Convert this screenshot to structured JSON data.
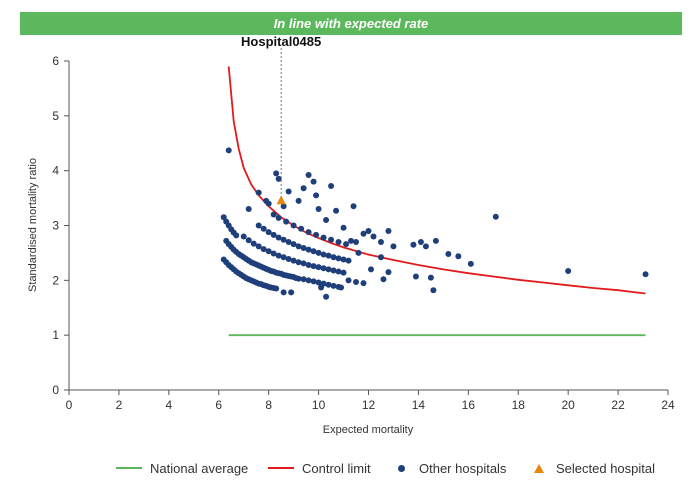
{
  "banner": {
    "text": "In line with expected rate",
    "color": "#5cb85c"
  },
  "colors": {
    "national": "#5cb85c",
    "control": "#e31a1c",
    "others": "#1f3f7a",
    "selected": "#e8850c"
  },
  "chart_data": {
    "type": "scatter",
    "title": "",
    "xlabel": "Expected mortality",
    "ylabel": "Standardised mortality ratio",
    "xlim": [
      0,
      24
    ],
    "ylim": [
      0,
      6
    ],
    "xticks": [
      0,
      2,
      4,
      6,
      8,
      10,
      12,
      14,
      16,
      18,
      20,
      22,
      24
    ],
    "yticks": [
      0,
      1,
      2,
      3,
      4,
      5,
      6
    ],
    "grid": false,
    "legend_position": "bottom",
    "selected_label": "Hospital0485",
    "national_average": {
      "name": "National average",
      "y": 1,
      "x_range": [
        6.4,
        23.1
      ]
    },
    "control_limit": {
      "name": "Control limit",
      "points": [
        [
          6.4,
          5.9
        ],
        [
          6.6,
          4.9
        ],
        [
          6.8,
          4.4
        ],
        [
          7.0,
          4.05
        ],
        [
          7.3,
          3.75
        ],
        [
          7.6,
          3.55
        ],
        [
          8.0,
          3.35
        ],
        [
          8.5,
          3.15
        ],
        [
          9.0,
          3.0
        ],
        [
          9.5,
          2.87
        ],
        [
          10.0,
          2.77
        ],
        [
          10.5,
          2.68
        ],
        [
          11.0,
          2.6
        ],
        [
          12.0,
          2.47
        ],
        [
          13.0,
          2.37
        ],
        [
          14.0,
          2.28
        ],
        [
          15.0,
          2.2
        ],
        [
          16.0,
          2.13
        ],
        [
          17.0,
          2.07
        ],
        [
          18.0,
          2.01
        ],
        [
          19.0,
          1.96
        ],
        [
          20.0,
          1.91
        ],
        [
          21.0,
          1.86
        ],
        [
          22.0,
          1.82
        ],
        [
          23.1,
          1.76
        ]
      ]
    },
    "other_hospitals": {
      "name": "Other hospitals",
      "points": [
        [
          6.2,
          2.38
        ],
        [
          6.3,
          2.33
        ],
        [
          6.4,
          2.28
        ],
        [
          6.5,
          2.24
        ],
        [
          6.6,
          2.2
        ],
        [
          6.7,
          2.16
        ],
        [
          6.8,
          2.13
        ],
        [
          6.9,
          2.1
        ],
        [
          7.0,
          2.07
        ],
        [
          7.1,
          2.04
        ],
        [
          7.2,
          2.02
        ],
        [
          7.3,
          2.0
        ],
        [
          7.4,
          1.98
        ],
        [
          7.5,
          1.96
        ],
        [
          7.6,
          1.94
        ],
        [
          7.7,
          1.93
        ],
        [
          7.8,
          1.91
        ],
        [
          7.9,
          1.9
        ],
        [
          8.0,
          1.88
        ],
        [
          8.1,
          1.87
        ],
        [
          8.2,
          1.86
        ],
        [
          8.3,
          1.85
        ],
        [
          6.3,
          2.72
        ],
        [
          6.4,
          2.66
        ],
        [
          6.5,
          2.61
        ],
        [
          6.6,
          2.56
        ],
        [
          6.7,
          2.52
        ],
        [
          6.8,
          2.48
        ],
        [
          6.9,
          2.45
        ],
        [
          7.0,
          2.42
        ],
        [
          7.1,
          2.39
        ],
        [
          7.2,
          2.36
        ],
        [
          7.3,
          2.33
        ],
        [
          7.4,
          2.31
        ],
        [
          7.5,
          2.29
        ],
        [
          7.6,
          2.27
        ],
        [
          7.7,
          2.25
        ],
        [
          7.8,
          2.23
        ],
        [
          7.9,
          2.21
        ],
        [
          8.0,
          2.19
        ],
        [
          8.1,
          2.17
        ],
        [
          8.2,
          2.16
        ],
        [
          8.3,
          2.14
        ],
        [
          8.4,
          2.13
        ],
        [
          8.5,
          2.12
        ],
        [
          8.6,
          2.1
        ],
        [
          8.7,
          2.09
        ],
        [
          8.8,
          2.08
        ],
        [
          8.9,
          2.07
        ],
        [
          9.0,
          2.06
        ],
        [
          9.1,
          2.04
        ],
        [
          9.2,
          2.03
        ],
        [
          9.4,
          2.02
        ],
        [
          9.6,
          2.0
        ],
        [
          9.8,
          1.98
        ],
        [
          10.0,
          1.96
        ],
        [
          10.2,
          1.94
        ],
        [
          10.4,
          1.92
        ],
        [
          10.6,
          1.9
        ],
        [
          10.8,
          1.88
        ],
        [
          10.9,
          1.87
        ],
        [
          6.2,
          3.15
        ],
        [
          6.3,
          3.07
        ],
        [
          6.4,
          3.0
        ],
        [
          6.5,
          2.93
        ],
        [
          6.6,
          2.87
        ],
        [
          6.7,
          2.82
        ],
        [
          7.0,
          2.8
        ],
        [
          7.2,
          2.73
        ],
        [
          7.4,
          2.67
        ],
        [
          7.6,
          2.62
        ],
        [
          7.8,
          2.57
        ],
        [
          8.0,
          2.53
        ],
        [
          8.2,
          2.49
        ],
        [
          8.4,
          2.45
        ],
        [
          8.6,
          2.42
        ],
        [
          8.8,
          2.39
        ],
        [
          9.0,
          2.36
        ],
        [
          9.2,
          2.33
        ],
        [
          9.4,
          2.31
        ],
        [
          9.6,
          2.28
        ],
        [
          9.8,
          2.26
        ],
        [
          10.0,
          2.24
        ],
        [
          10.2,
          2.22
        ],
        [
          10.4,
          2.2
        ],
        [
          10.6,
          2.18
        ],
        [
          10.8,
          2.16
        ],
        [
          11.0,
          2.14
        ],
        [
          7.6,
          3.0
        ],
        [
          7.8,
          2.94
        ],
        [
          8.0,
          2.88
        ],
        [
          8.2,
          2.83
        ],
        [
          8.4,
          2.78
        ],
        [
          8.6,
          2.74
        ],
        [
          8.8,
          2.7
        ],
        [
          9.0,
          2.66
        ],
        [
          9.2,
          2.62
        ],
        [
          9.4,
          2.59
        ],
        [
          9.6,
          2.56
        ],
        [
          9.8,
          2.53
        ],
        [
          10.0,
          2.5
        ],
        [
          10.2,
          2.47
        ],
        [
          10.4,
          2.45
        ],
        [
          10.6,
          2.42
        ],
        [
          10.8,
          2.4
        ],
        [
          11.0,
          2.38
        ],
        [
          11.2,
          2.36
        ],
        [
          8.2,
          3.2
        ],
        [
          8.4,
          3.14
        ],
        [
          8.7,
          3.07
        ],
        [
          9.0,
          3.0
        ],
        [
          9.3,
          2.94
        ],
        [
          9.6,
          2.88
        ],
        [
          9.9,
          2.83
        ],
        [
          10.2,
          2.78
        ],
        [
          10.5,
          2.74
        ],
        [
          10.8,
          2.7
        ],
        [
          11.1,
          2.66
        ],
        [
          6.4,
          4.37
        ],
        [
          7.2,
          3.3
        ],
        [
          7.6,
          3.6
        ],
        [
          7.9,
          3.45
        ],
        [
          8.0,
          3.4
        ],
        [
          8.3,
          3.95
        ],
        [
          8.4,
          3.85
        ],
        [
          8.6,
          3.35
        ],
        [
          8.8,
          3.62
        ],
        [
          9.2,
          3.45
        ],
        [
          9.4,
          3.68
        ],
        [
          9.6,
          3.92
        ],
        [
          9.8,
          3.8
        ],
        [
          9.9,
          3.55
        ],
        [
          10.0,
          3.3
        ],
        [
          10.3,
          3.1
        ],
        [
          10.5,
          3.72
        ],
        [
          10.7,
          3.27
        ],
        [
          11.0,
          2.96
        ],
        [
          11.3,
          2.72
        ],
        [
          11.4,
          3.35
        ],
        [
          11.5,
          2.7
        ],
        [
          11.6,
          2.5
        ],
        [
          11.8,
          2.85
        ],
        [
          12.0,
          2.9
        ],
        [
          12.2,
          2.8
        ],
        [
          12.5,
          2.7
        ],
        [
          12.8,
          2.9
        ],
        [
          13.0,
          2.62
        ],
        [
          13.8,
          2.65
        ],
        [
          14.1,
          2.7
        ],
        [
          14.3,
          2.62
        ],
        [
          14.7,
          2.72
        ],
        [
          15.2,
          2.48
        ],
        [
          15.6,
          2.44
        ],
        [
          16.1,
          2.3
        ],
        [
          17.1,
          3.16
        ],
        [
          20.0,
          2.17
        ],
        [
          23.1,
          2.11
        ],
        [
          11.2,
          2.0
        ],
        [
          11.5,
          1.97
        ],
        [
          11.8,
          1.95
        ],
        [
          12.1,
          2.2
        ],
        [
          12.5,
          2.42
        ],
        [
          12.8,
          2.15
        ],
        [
          13.9,
          2.07
        ],
        [
          14.5,
          2.05
        ],
        [
          14.6,
          1.82
        ],
        [
          12.6,
          2.02
        ],
        [
          10.1,
          1.87
        ],
        [
          10.3,
          1.7
        ],
        [
          8.9,
          1.78
        ],
        [
          8.6,
          1.78
        ]
      ]
    },
    "selected_hospital": {
      "name": "Selected hospital",
      "x": 8.5,
      "y": 3.46
    }
  },
  "legend": {
    "national": "National average",
    "control": "Control limit",
    "others": "Other hospitals",
    "selected": "Selected hospital"
  }
}
